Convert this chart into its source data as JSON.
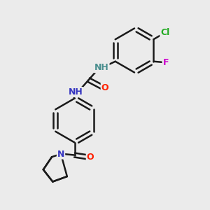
{
  "bg_color": "#ebebeb",
  "bond_color": "#1a1a1a",
  "bond_width": 1.8,
  "atom_colors": {
    "N_urea1": "#4a8f8f",
    "N_urea2": "#3535c0",
    "O_urea": "#ff2000",
    "O_carb": "#ff2000",
    "F": "#cc00cc",
    "Cl": "#22aa22",
    "N_pyrr": "#3535c0"
  },
  "font_size_NH": 9,
  "font_size_atom": 9,
  "fig_size": [
    3.0,
    3.0
  ],
  "dpi": 100,
  "xlim": [
    0,
    10
  ],
  "ylim": [
    0,
    10
  ]
}
